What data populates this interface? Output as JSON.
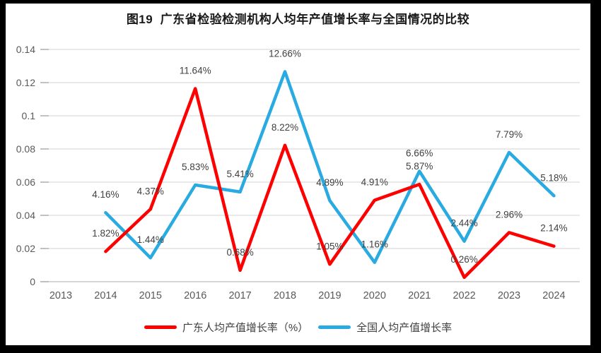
{
  "title": "图19  广东省检验检测机构人均年产值增长率与全国情况的比较",
  "chart_data": {
    "type": "line",
    "title": "图19  广东省检验检测机构人均年产值增长率与全国情况的比较",
    "x_categories": [
      "2013",
      "2014",
      "2015",
      "2016",
      "2017",
      "2018",
      "2019",
      "2020",
      "2021",
      "2022",
      "2023",
      "2024"
    ],
    "y_ticks": [
      "0",
      "0.02",
      "0.04",
      "0.06",
      "0.08",
      "0.1",
      "0.12",
      "0.14"
    ],
    "ylim": [
      0,
      0.14
    ],
    "grid": true,
    "legend_position": "bottom",
    "series": [
      {
        "name": "广东人均产值增长率（%）",
        "color": "#FF0000",
        "start_category": "2014",
        "values_percent": [
          1.82,
          4.37,
          11.64,
          0.68,
          8.22,
          1.05,
          4.91,
          5.87,
          0.26,
          2.96,
          2.14
        ],
        "point_labels": [
          "1.82%",
          "4.37%",
          "11.64%",
          "0.68%",
          "8.22%",
          "1.05%",
          "4.91%",
          "5.87%",
          "0.26%",
          "2.96%",
          "2.14%"
        ]
      },
      {
        "name": "全国人均产值增长率",
        "color": "#29ABE2",
        "start_category": "2014",
        "values_percent": [
          4.16,
          1.44,
          5.83,
          5.41,
          12.66,
          4.89,
          1.16,
          6.66,
          2.44,
          7.79,
          5.18
        ],
        "point_labels": [
          "4.16%",
          "1.44%",
          "5.83%",
          "5.41%",
          "12.66%",
          "4.89%",
          "1.16%",
          "6.66%",
          "2.44%",
          "7.79%",
          "5.18%"
        ]
      }
    ],
    "colors": {
      "grid": "#DCDCDC",
      "axis_line": "#BFBFBF",
      "tick": "#ABABAB",
      "axis_text": "#595959",
      "label_text": "#404040",
      "frame_border": "#000000",
      "background": "#FFFFFF"
    }
  }
}
